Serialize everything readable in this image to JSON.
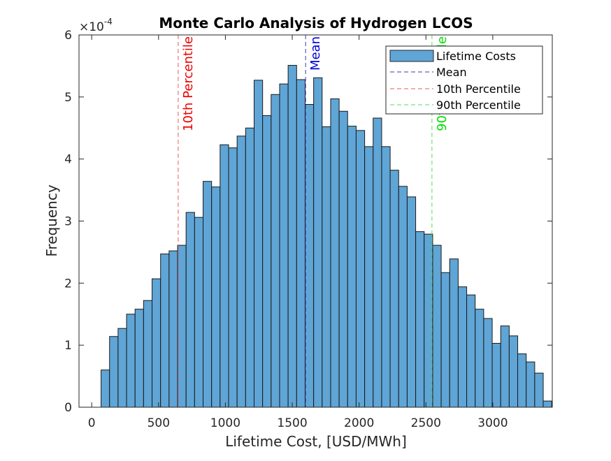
{
  "chart_data": {
    "type": "bar",
    "title": "Monte Carlo Analysis of Hydrogen LCOS",
    "xlabel": "Lifetime Cost, [USD/MWh]",
    "ylabel": "Frequency",
    "y_exponent_label": "×10",
    "y_exponent_power": "-4",
    "xlim": [
      -95,
      3445
    ],
    "ylim": [
      0,
      6
    ],
    "x_ticks": [
      0,
      500,
      1000,
      1500,
      2000,
      2500,
      3000
    ],
    "x_tick_labels": [
      "0",
      "500",
      "1000",
      "1500",
      "2000",
      "2500",
      "3000"
    ],
    "y_ticks": [
      0,
      1,
      2,
      3,
      4,
      5,
      6
    ],
    "y_tick_labels": [
      "0",
      "1",
      "2",
      "3",
      "4",
      "5",
      "6"
    ],
    "grid": false,
    "legend_position": "top-right",
    "bin_start": 70,
    "bin_width": 63.6,
    "bar_color": "#5fa5d6",
    "series": [
      {
        "name": "Lifetime Costs",
        "values": [
          0.6,
          1.14,
          1.27,
          1.5,
          1.58,
          1.72,
          2.07,
          2.47,
          2.52,
          2.61,
          3.14,
          3.06,
          3.64,
          3.55,
          4.23,
          4.18,
          4.37,
          4.5,
          5.27,
          4.7,
          5.04,
          5.21,
          5.51,
          5.28,
          4.88,
          5.31,
          4.52,
          4.97,
          4.77,
          4.53,
          4.46,
          4.2,
          4.66,
          4.2,
          3.82,
          3.56,
          3.39,
          2.83,
          2.79,
          2.61,
          2.17,
          2.39,
          1.94,
          1.81,
          1.58,
          1.43,
          1.03,
          1.31,
          1.15,
          0.86,
          0.73,
          0.55,
          0.1
        ]
      }
    ],
    "reference_lines": [
      {
        "name": "Mean",
        "x": 1600,
        "color": "#3b3bb0",
        "label": "Mean",
        "label_color": "#0000dd"
      },
      {
        "name": "10th Percentile",
        "x": 647,
        "color": "#e85a5a",
        "label": "10th Percentile",
        "label_color": "#ee0000"
      },
      {
        "name": "90th Percentile",
        "x": 2545,
        "color": "#55dd55",
        "label": "90th Percentile",
        "label_color": "#00dd00"
      }
    ]
  }
}
